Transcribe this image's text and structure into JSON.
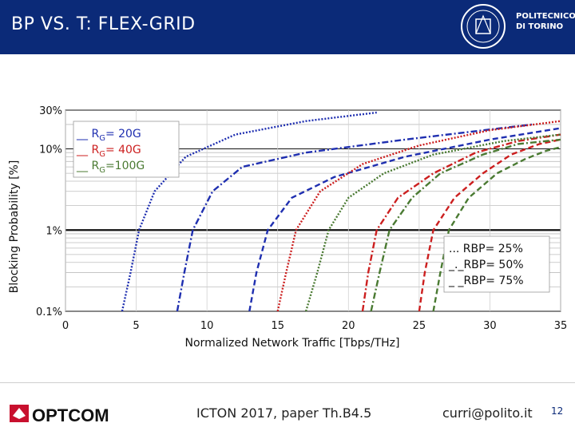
{
  "header": {
    "title": "BP VS. T: FLEX-GRID",
    "logo_line1": "POLITECNICO",
    "logo_line2": "DI TORINO",
    "logo_seal_icon": "politecnico-seal-icon",
    "bg_color": "#0b2a78"
  },
  "footer": {
    "logo_icon": "optcom-logo-icon",
    "logo_text": "OPTCOM",
    "venue": "ICTON 2017, paper Th.B4.5",
    "email": "curri@polito.it",
    "page": "12"
  },
  "chart_data": {
    "type": "line",
    "xlabel": "Normalized Network Traffic [Tbps/THz]",
    "ylabel": "Blocking Probability [%]",
    "xlim": [
      0,
      35
    ],
    "ylim": [
      0.1,
      30
    ],
    "yscale": "log",
    "xticks": [
      "0",
      "5",
      "10",
      "15",
      "20",
      "25",
      "30",
      "35"
    ],
    "yticks": [
      {
        "value": 30,
        "label": "30%"
      },
      {
        "value": 10,
        "label": "10%"
      },
      {
        "value": 1,
        "label": "1%"
      },
      {
        "value": 0.1,
        "label": "0.1%"
      }
    ],
    "legend_color": {
      "entries": [
        {
          "prefix": "__ R",
          "sub": "G",
          "suffix": "= 20G",
          "color": "#1f2fb0"
        },
        {
          "prefix": "__ R",
          "sub": "G",
          "suffix": "= 40G",
          "color": "#cc1f1f"
        },
        {
          "prefix": "__ R",
          "sub": "G",
          "suffix": "=100G",
          "color": "#4a7a32"
        }
      ],
      "position": "top-left"
    },
    "legend_style": {
      "entries": [
        "... RBP= 25%",
        "_._RBP= 50%",
        "_ _RBP= 75%"
      ],
      "position": "bottom-right"
    },
    "series": [
      {
        "rate": "20G",
        "color": "#1f2fb0",
        "dash": "dot",
        "points": [
          [
            4.0,
            0.1
          ],
          [
            4.6,
            0.3
          ],
          [
            5.2,
            1
          ],
          [
            6.3,
            3
          ],
          [
            8.5,
            8
          ],
          [
            12,
            15
          ],
          [
            17,
            22
          ],
          [
            22,
            28
          ]
        ]
      },
      {
        "rate": "20G",
        "color": "#1f2fb0",
        "dash": "dashdot",
        "points": [
          [
            7.9,
            0.1
          ],
          [
            8.4,
            0.3
          ],
          [
            9.0,
            1
          ],
          [
            10.4,
            3
          ],
          [
            12.5,
            6
          ],
          [
            17,
            9
          ],
          [
            24,
            13
          ],
          [
            33,
            20
          ]
        ]
      },
      {
        "rate": "20G",
        "color": "#1f2fb0",
        "dash": "dash",
        "points": [
          [
            13.0,
            0.1
          ],
          [
            13.5,
            0.3
          ],
          [
            14.3,
            1
          ],
          [
            16,
            2.5
          ],
          [
            19,
            4.5
          ],
          [
            24,
            8
          ],
          [
            30,
            13
          ],
          [
            35,
            18
          ]
        ]
      },
      {
        "rate": "40G",
        "color": "#cc1f1f",
        "dash": "dot",
        "points": [
          [
            15.0,
            0.1
          ],
          [
            15.6,
            0.3
          ],
          [
            16.3,
            1
          ],
          [
            18,
            3
          ],
          [
            21,
            6.5
          ],
          [
            25,
            11
          ],
          [
            30,
            17
          ],
          [
            35,
            22
          ]
        ]
      },
      {
        "rate": "40G",
        "color": "#cc1f1f",
        "dash": "dashdot",
        "points": [
          [
            21.0,
            0.1
          ],
          [
            21.4,
            0.3
          ],
          [
            22.0,
            1
          ],
          [
            23.5,
            2.5
          ],
          [
            26,
            5
          ],
          [
            29,
            9
          ],
          [
            32,
            12.5
          ],
          [
            35,
            15
          ]
        ]
      },
      {
        "rate": "40G",
        "color": "#cc1f1f",
        "dash": "dash",
        "points": [
          [
            25.0,
            0.1
          ],
          [
            25.4,
            0.3
          ],
          [
            26.0,
            1
          ],
          [
            27.5,
            2.5
          ],
          [
            29.5,
            5
          ],
          [
            31.5,
            8.5
          ],
          [
            33.5,
            11.5
          ],
          [
            35,
            13
          ]
        ]
      },
      {
        "rate": "100G",
        "color": "#4a7a32",
        "dash": "dot",
        "points": [
          [
            17.0,
            0.1
          ],
          [
            17.8,
            0.3
          ],
          [
            18.6,
            1
          ],
          [
            20,
            2.5
          ],
          [
            22.5,
            5
          ],
          [
            26,
            8.5
          ],
          [
            31,
            12.5
          ],
          [
            35,
            15
          ]
        ]
      },
      {
        "rate": "100G",
        "color": "#4a7a32",
        "dash": "dashdot",
        "points": [
          [
            21.6,
            0.1
          ],
          [
            22.2,
            0.3
          ],
          [
            22.9,
            1
          ],
          [
            24.5,
            2.5
          ],
          [
            26.5,
            5
          ],
          [
            29.5,
            8.5
          ],
          [
            32,
            11.5
          ],
          [
            35,
            13
          ]
        ]
      },
      {
        "rate": "100G",
        "color": "#4a7a32",
        "dash": "dash",
        "points": [
          [
            26.0,
            0.1
          ],
          [
            26.5,
            0.3
          ],
          [
            27.1,
            1
          ],
          [
            28.5,
            2.5
          ],
          [
            30.5,
            5
          ],
          [
            32.5,
            7.5
          ],
          [
            34,
            9.5
          ],
          [
            35,
            10.5
          ]
        ]
      }
    ]
  }
}
